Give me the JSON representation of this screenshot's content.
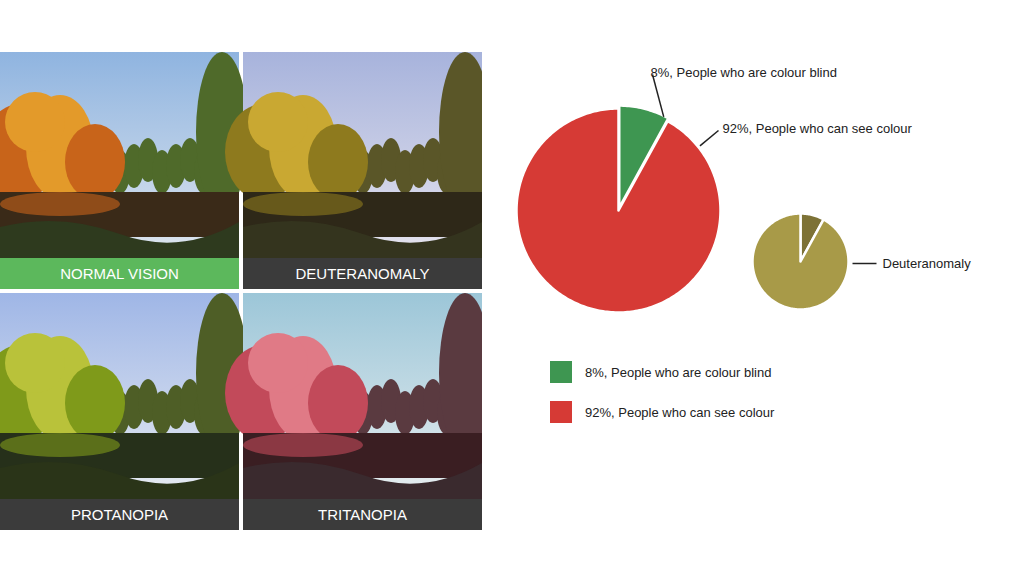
{
  "image_panels": {
    "labels": [
      "NORMAL VISION",
      "DEUTERANOMALY",
      "PROTANOPIA",
      "TRITANOPIA"
    ]
  },
  "chart_data": [
    {
      "type": "pie",
      "categories": [
        "8%, People who are colour blind",
        "92%, People who can see colour"
      ],
      "values": [
        8,
        92
      ],
      "colors": [
        "#3e9651",
        "#d63a35"
      ],
      "data_labels": true,
      "value_labels": [
        "8%, People who are colour blind",
        "92%, People who can see colour"
      ],
      "legend": "bottom"
    },
    {
      "type": "pie",
      "title": "Deuteranomaly",
      "values": [
        8,
        92
      ],
      "colors": [
        "#7d7236",
        "#a89a48"
      ]
    }
  ]
}
